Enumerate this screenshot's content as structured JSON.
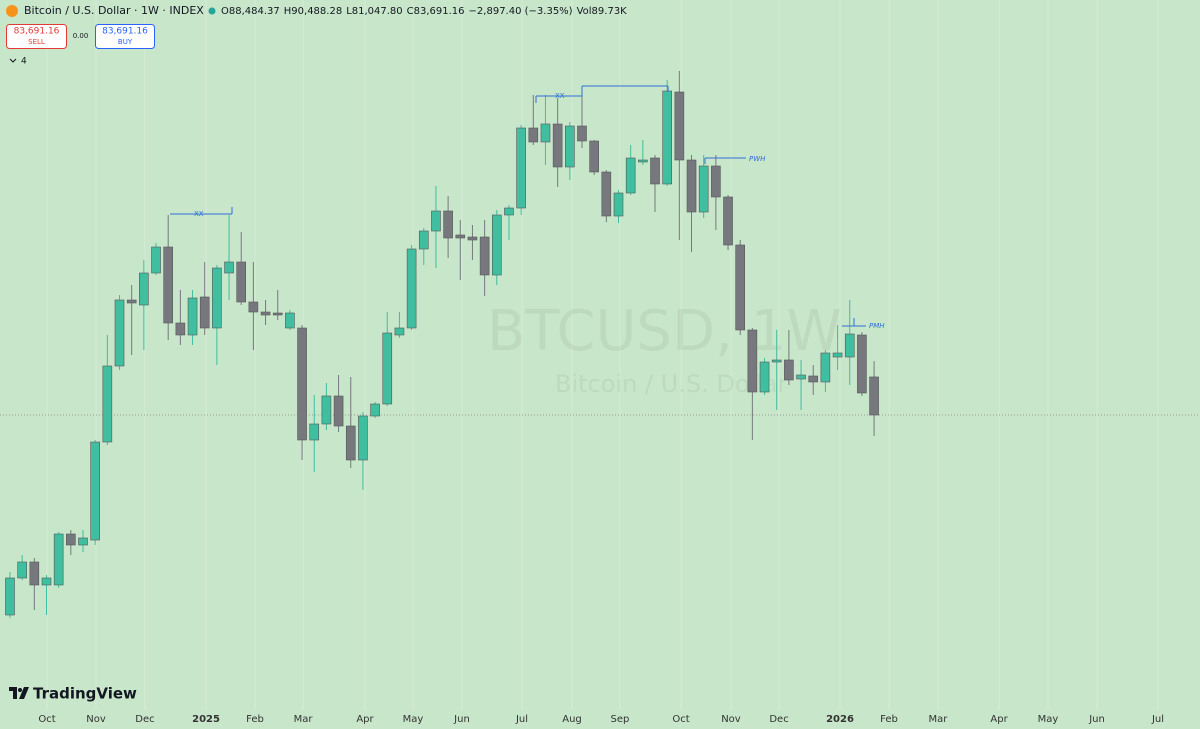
{
  "header": {
    "symbol": "Bitcoin / U.S. Dollar · 1W · INDEX",
    "open": "O88,484.37",
    "high": "H90,488.28",
    "low": "L81,047.80",
    "close": "C83,691.16",
    "change": "−2,897.40 (−3.35%)",
    "volume": "Vol89.73K"
  },
  "trade": {
    "sell_price": "83,691.16",
    "sell": "SELL",
    "spread": "0.00",
    "buy_price": "83,691.16",
    "buy": "BUY"
  },
  "indicators_count": "4",
  "watermark": {
    "symbol": "BTCUSD, 1W",
    "description": "Bitcoin / U.S. Dollar"
  },
  "brand": "TradingView",
  "chart_data": {
    "type": "candlestick",
    "up_color": "#3fbf9f",
    "down_color": "#77787e",
    "grid": true,
    "ylim": [
      46521,
      135981
    ],
    "xlim": [
      -0.82,
      97.78
    ],
    "xticks": [
      {
        "value": 3.04,
        "label": "Oct"
      },
      {
        "value": 7.07,
        "label": "Nov"
      },
      {
        "value": 11.09,
        "label": "Dec"
      },
      {
        "value": 16.11,
        "label": "2025"
      },
      {
        "value": 20.13,
        "label": "Feb"
      },
      {
        "value": 24.08,
        "label": "Mar"
      },
      {
        "value": 29.17,
        "label": "Apr"
      },
      {
        "value": 33.11,
        "label": "May"
      },
      {
        "value": 37.14,
        "label": "Jun"
      },
      {
        "value": 42.07,
        "label": "Jul"
      },
      {
        "value": 46.18,
        "label": "Aug"
      },
      {
        "value": 50.12,
        "label": "Sep"
      },
      {
        "value": 55.14,
        "label": "Oct"
      },
      {
        "value": 59.24,
        "label": "Nov"
      },
      {
        "value": 63.19,
        "label": "Dec"
      },
      {
        "value": 68.2,
        "label": "2026"
      },
      {
        "value": 72.23,
        "label": "Feb"
      },
      {
        "value": 76.25,
        "label": "Mar"
      },
      {
        "value": 81.27,
        "label": "Apr"
      },
      {
        "value": 85.29,
        "label": "May"
      },
      {
        "value": 89.32,
        "label": "Jun"
      },
      {
        "value": 94.33,
        "label": "Jul"
      }
    ],
    "open": [
      58491,
      63153,
      65169,
      62271,
      62271,
      68697,
      67311,
      67941,
      80289,
      89865,
      98181,
      97551,
      101583,
      104859,
      95283,
      93771,
      98559,
      94653,
      101583,
      102969,
      97929,
      96669,
      96543,
      94653,
      94653,
      80541,
      82557,
      86085,
      82305,
      78021,
      83565,
      85077,
      93771,
      94653,
      104607,
      106875,
      109395,
      106371,
      106119,
      106119,
      101331,
      108891,
      109773,
      119853,
      118089,
      120357,
      114939,
      120105,
      118215,
      114309,
      108765,
      111663,
      115569,
      116073,
      112797,
      124389,
      115821,
      109269,
      115065,
      111159,
      105111,
      94401,
      86589,
      90369,
      90621,
      88227,
      88605,
      87849,
      90999,
      90999,
      93771,
      88484.37
    ],
    "high": [
      63909,
      66051,
      65673,
      63531,
      68949,
      69201,
      69201,
      80541,
      93771,
      98811,
      100071,
      103221,
      105363,
      108891,
      99441,
      99441,
      102969,
      102591,
      108891,
      106749,
      102969,
      98181,
      99441,
      96921,
      95031,
      86211,
      87723,
      88731,
      88479,
      84069,
      85329,
      96669,
      96669,
      105111,
      107253,
      112545,
      111285,
      108261,
      107631,
      108261,
      109521,
      110151,
      120231,
      124011,
      124011,
      123633,
      120609,
      125145,
      118341,
      114561,
      112041,
      117711,
      118341,
      116451,
      125901,
      127035,
      116451,
      116451,
      116451,
      111411,
      105741,
      94653,
      90873,
      94401,
      94401,
      90621,
      89991,
      91881,
      95031,
      98181,
      94149,
      90488.28
    ],
    "low": [
      58113,
      62901,
      59121,
      58491,
      61893,
      66051,
      66429,
      67311,
      79911,
      89361,
      91251,
      91881,
      101331,
      93141,
      92511,
      92511,
      93771,
      89991,
      98181,
      97551,
      91881,
      95031,
      95661,
      94401,
      78021,
      76509,
      81801,
      81549,
      77013,
      74241,
      83313,
      84825,
      93393,
      94401,
      102591,
      102213,
      103473,
      100701,
      103221,
      98685,
      100071,
      105741,
      108891,
      117711,
      115191,
      112419,
      113301,
      117333,
      113931,
      108009,
      107883,
      111411,
      115191,
      109269,
      112545,
      105741,
      104229,
      108513,
      107001,
      104481,
      93771,
      80541,
      86211,
      84321,
      87471,
      84321,
      86211,
      86589,
      89361,
      87471,
      86085,
      81047.8
    ],
    "close": [
      63153,
      65169,
      62271,
      63153,
      68697,
      67311,
      68193,
      80289,
      89865,
      98181,
      97803,
      101583,
      104859,
      95283,
      93771,
      98433,
      94653,
      102213,
      102969,
      97929,
      96669,
      96291,
      96291,
      96543,
      80541,
      82557,
      86085,
      82305,
      78021,
      83565,
      85077,
      94023,
      94653,
      104607,
      106875,
      109395,
      105993,
      105993,
      105741,
      101331,
      108891,
      109773,
      119853,
      118089,
      120357,
      114939,
      120105,
      118215,
      114309,
      108765,
      111663,
      116073,
      115821,
      112797,
      124515,
      115821,
      109269,
      115065,
      111159,
      105111,
      94401,
      86589,
      90369,
      90621,
      88101,
      88731,
      87849,
      91503,
      91503,
      93897,
      86463,
      83691.16
    ],
    "annotations": [
      "XX",
      "XX",
      "PWH",
      "PMH"
    ]
  }
}
